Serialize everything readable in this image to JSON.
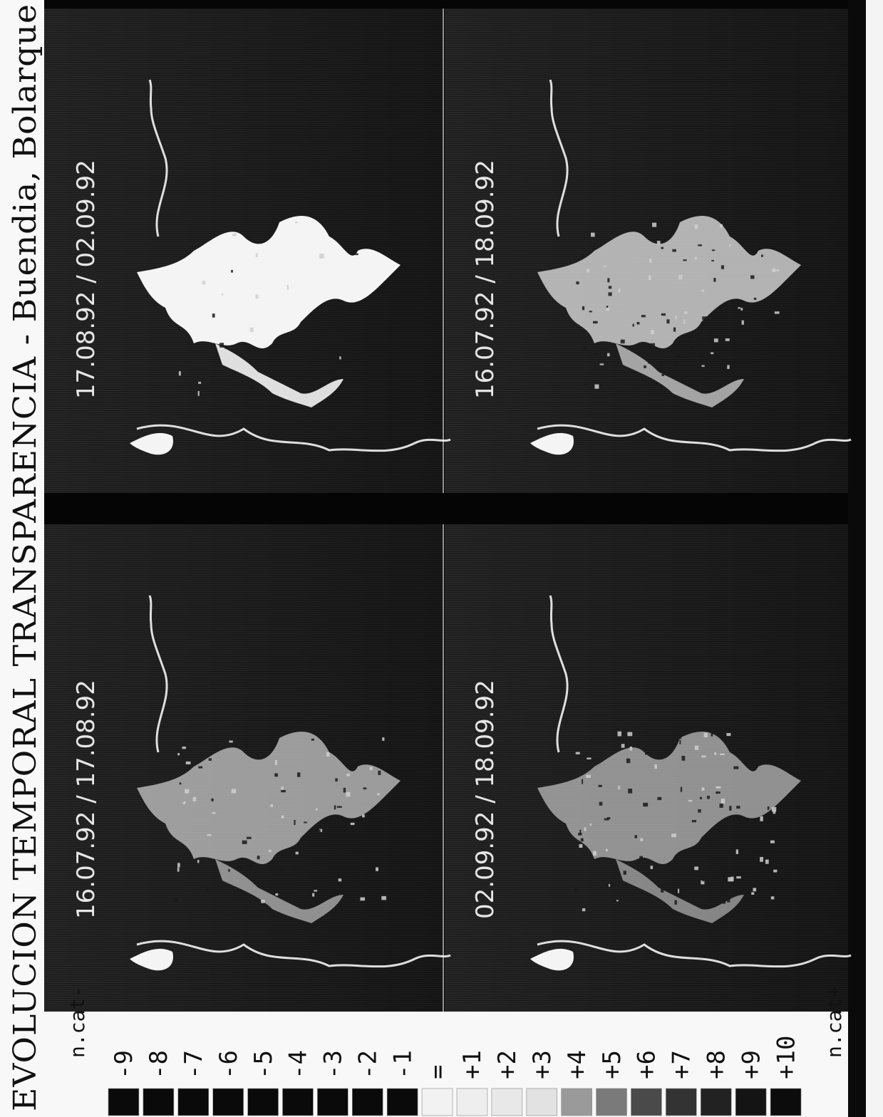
{
  "title": "EVOLUCION TEMPORAL TRANSPARENCIA - Buendia, Bolarque",
  "panels": [
    {
      "label": "17.08.92 / 02.09.92"
    },
    {
      "label": "16.07.92 / 18.09.92"
    },
    {
      "label": "16.07.92 / 17.08.92"
    },
    {
      "label": "02.09.92 / 18.09.92"
    }
  ],
  "legend": {
    "top_label": "n.cat-",
    "bottom_label": "n.cat+",
    "items": [
      {
        "label": "-9",
        "color": "#0a0a0a"
      },
      {
        "label": "-8",
        "color": "#0a0a0a"
      },
      {
        "label": "-7",
        "color": "#0a0a0a"
      },
      {
        "label": "-6",
        "color": "#0a0a0a"
      },
      {
        "label": "-5",
        "color": "#0a0a0a"
      },
      {
        "label": "-4",
        "color": "#0a0a0a"
      },
      {
        "label": "-3",
        "color": "#0a0a0a"
      },
      {
        "label": "-2",
        "color": "#0a0a0a"
      },
      {
        "label": "-1",
        "color": "#0a0a0a"
      },
      {
        "label": "=",
        "color": "#f2f2f2"
      },
      {
        "label": "+1",
        "color": "#eeeeee"
      },
      {
        "label": "+2",
        "color": "#e8e8e8"
      },
      {
        "label": "+3",
        "color": "#e2e2e2"
      },
      {
        "label": "+4",
        "color": "#9a9a9a"
      },
      {
        "label": "+5",
        "color": "#7a7a7a"
      },
      {
        "label": "+6",
        "color": "#4a4a4a"
      },
      {
        "label": "+7",
        "color": "#333333"
      },
      {
        "label": "+8",
        "color": "#222222"
      },
      {
        "label": "+9",
        "color": "#141414"
      },
      {
        "label": "+10",
        "color": "#0c0c0c"
      }
    ]
  },
  "colors": {
    "background": "#050505",
    "panel_texture": "#242424",
    "water": "#f4f4f4",
    "label_text": "#e6e6e6"
  }
}
